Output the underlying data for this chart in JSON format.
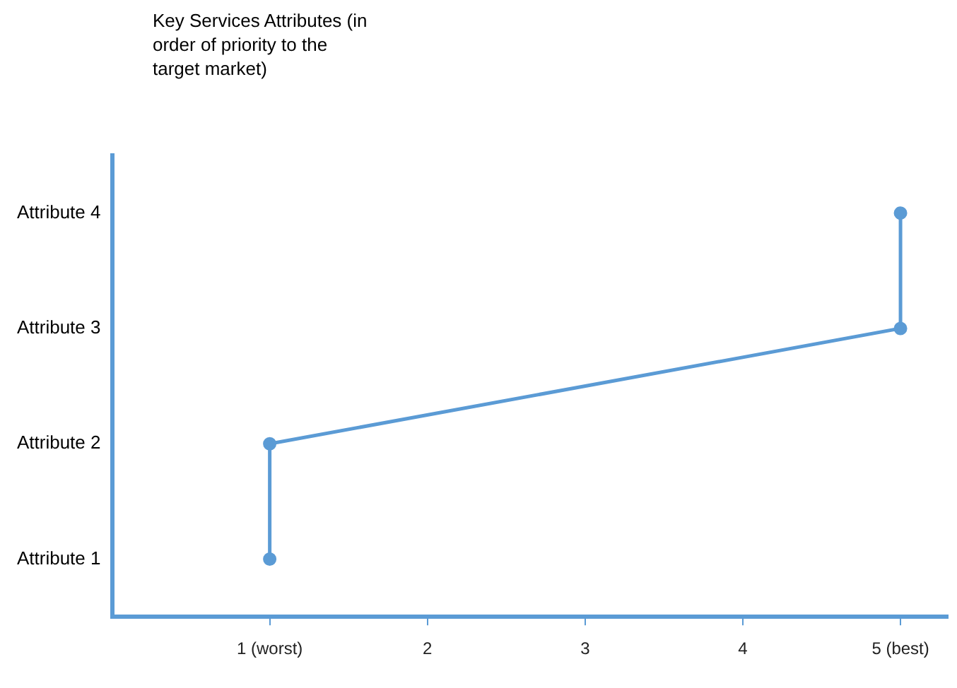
{
  "chart_data": {
    "type": "line",
    "orientation": "horizontal",
    "ylabel": "Key Services Attributes (in order of priority to the target market)",
    "categories": [
      "Attribute 4",
      "Attribute 3",
      "Attribute 2",
      "Attribute 1"
    ],
    "values": [
      5,
      5,
      1,
      1
    ],
    "color": "#5b9bd5",
    "marker": "circle",
    "xlim": [
      0,
      5.3
    ],
    "xticks": [
      {
        "value": 1,
        "label": "1 (worst)"
      },
      2,
      3,
      4,
      {
        "value": 5,
        "label": "5 (best)"
      }
    ]
  }
}
